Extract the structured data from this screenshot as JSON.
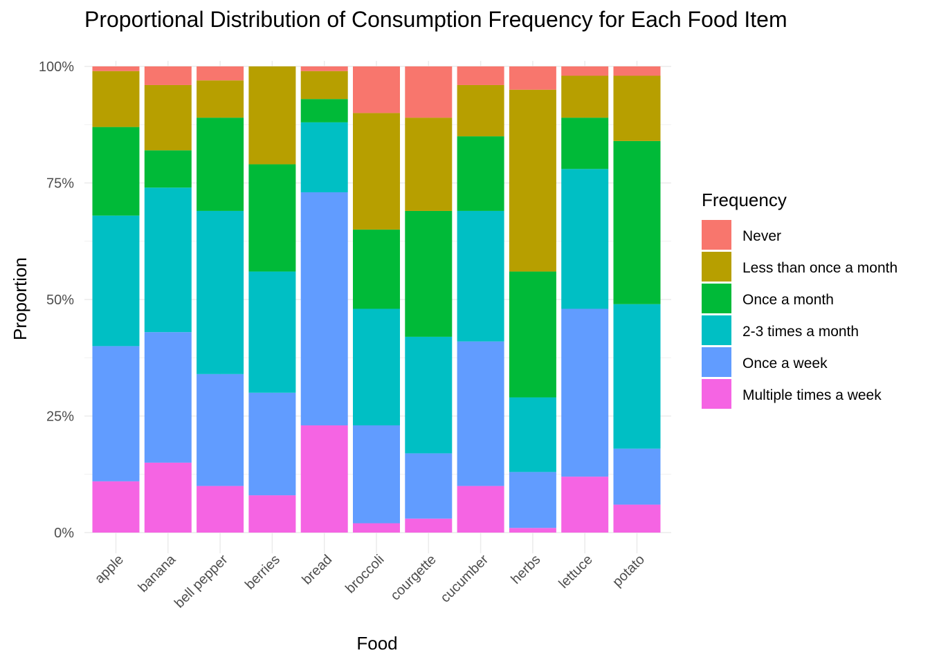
{
  "chart_data": {
    "type": "bar",
    "stacked": true,
    "normalized": true,
    "title": "Proportional Distribution of Consumption Frequency for Each Food Item",
    "xlabel": "Food",
    "ylabel": "Proportion",
    "ylim": [
      0,
      1
    ],
    "y_ticks": [
      "0%",
      "25%",
      "50%",
      "75%",
      "100%"
    ],
    "y_tick_values": [
      0,
      0.25,
      0.5,
      0.75,
      1
    ],
    "grid": true,
    "legend_title": "Frequency",
    "legend_position": "right",
    "categories": [
      "apple",
      "banana",
      "bell pepper",
      "berries",
      "bread",
      "broccoli",
      "courgette",
      "cucumber",
      "herbs",
      "lettuce",
      "potato"
    ],
    "series": [
      {
        "name": "Multiple times a week",
        "color": "#F564E3",
        "values": [
          0.11,
          0.15,
          0.1,
          0.08,
          0.23,
          0.02,
          0.03,
          0.1,
          0.01,
          0.12,
          0.06
        ]
      },
      {
        "name": "Once a week",
        "color": "#619CFF",
        "values": [
          0.29,
          0.28,
          0.24,
          0.22,
          0.5,
          0.21,
          0.14,
          0.31,
          0.12,
          0.36,
          0.12
        ]
      },
      {
        "name": "2-3 times a month",
        "color": "#00BFC4",
        "values": [
          0.28,
          0.31,
          0.35,
          0.26,
          0.15,
          0.25,
          0.25,
          0.28,
          0.16,
          0.3,
          0.31
        ]
      },
      {
        "name": "Once a month",
        "color": "#00BA38",
        "values": [
          0.19,
          0.08,
          0.2,
          0.23,
          0.05,
          0.17,
          0.27,
          0.16,
          0.27,
          0.11,
          0.35
        ]
      },
      {
        "name": "Less than once a month",
        "color": "#B79F00",
        "values": [
          0.12,
          0.14,
          0.08,
          0.21,
          0.06,
          0.25,
          0.2,
          0.11,
          0.39,
          0.09,
          0.14
        ]
      },
      {
        "name": "Never",
        "color": "#F8766D",
        "values": [
          0.01,
          0.04,
          0.03,
          0.0,
          0.01,
          0.1,
          0.11,
          0.04,
          0.05,
          0.02,
          0.02
        ]
      }
    ],
    "legend_order": [
      "Never",
      "Less than once a month",
      "Once a month",
      "2-3 times a month",
      "Once a week",
      "Multiple times a week"
    ]
  }
}
